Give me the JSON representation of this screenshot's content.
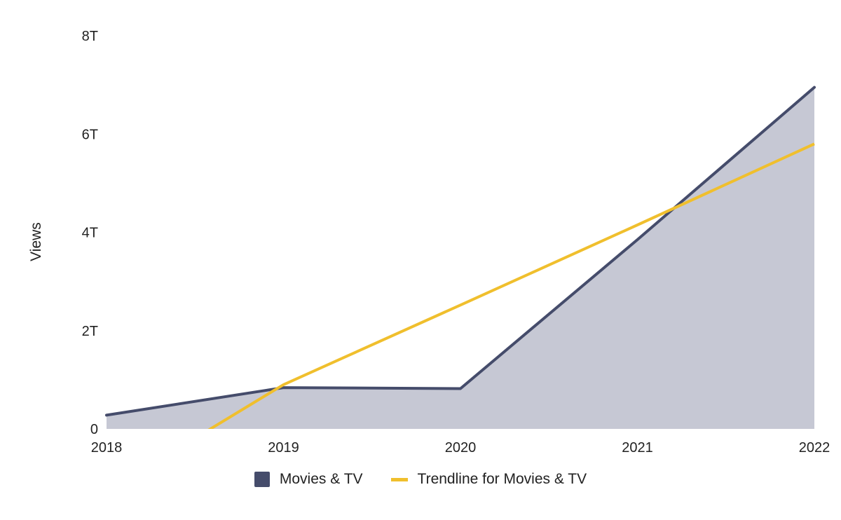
{
  "chart_data": {
    "type": "area",
    "x": [
      "2018",
      "2019",
      "2020",
      "2021",
      "2022"
    ],
    "series": [
      {
        "name": "Movies & TV",
        "kind": "area",
        "values": [
          0.28,
          0.84,
          0.82,
          3.85,
          6.95
        ],
        "line_color": "#454c6b",
        "fill_color": "#c6c8d4"
      },
      {
        "name": "Trendline for Movies & TV",
        "kind": "line",
        "values": [
          -1.28,
          0.9,
          2.52,
          4.15,
          5.8
        ],
        "line_color": "#f0bf2d"
      }
    ],
    "ylabel": "Views",
    "xlabel": "",
    "ylim": [
      0,
      8
    ],
    "y_ticks": [
      {
        "value": 0,
        "label": "0"
      },
      {
        "value": 2,
        "label": "2T"
      },
      {
        "value": 4,
        "label": "4T"
      },
      {
        "value": 6,
        "label": "6T"
      },
      {
        "value": 8,
        "label": "8T"
      }
    ],
    "grid": false,
    "legend_position": "bottom-center"
  }
}
